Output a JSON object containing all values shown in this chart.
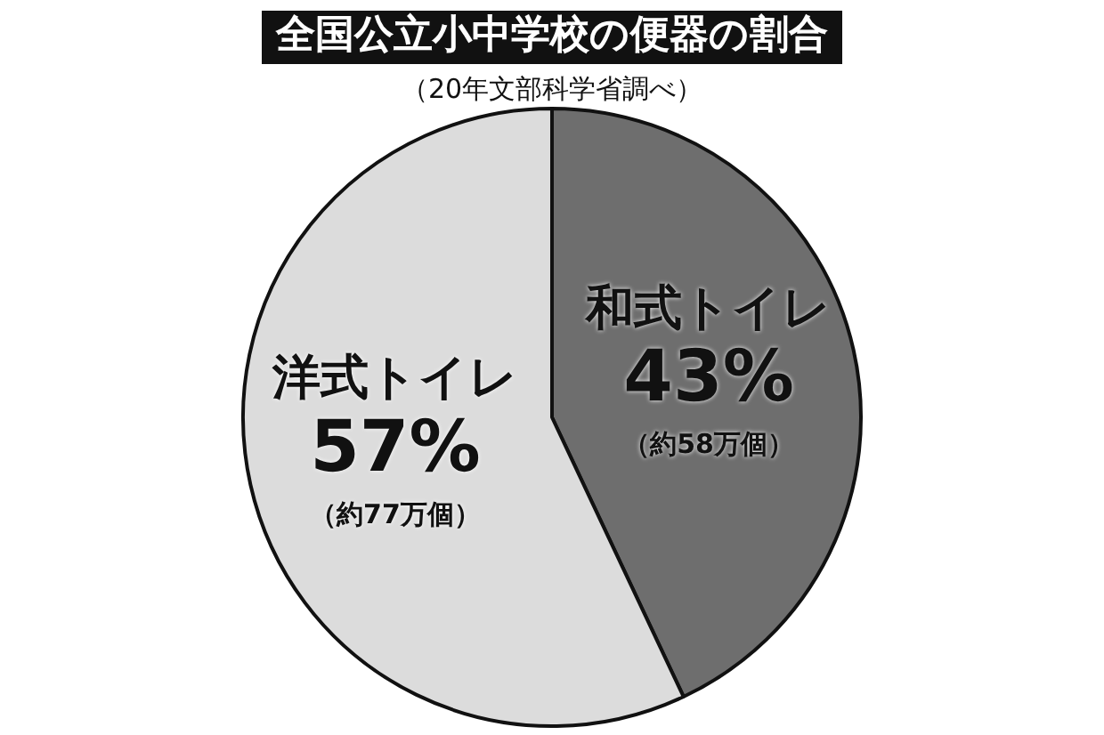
{
  "chart_data": {
    "type": "pie",
    "title": "全国公立小中学校の便器の割合",
    "subtitle": "（20年文部科学省調べ）",
    "categories": [
      "和式トイレ",
      "洋式トイレ"
    ],
    "values": [
      43,
      57
    ],
    "colors": [
      "#6e6e6e",
      "#dcdcdc"
    ],
    "value_labels": [
      "43%",
      "57%"
    ],
    "annotations": [
      "（約58万個）",
      "（約77万個）"
    ],
    "legend": false
  }
}
